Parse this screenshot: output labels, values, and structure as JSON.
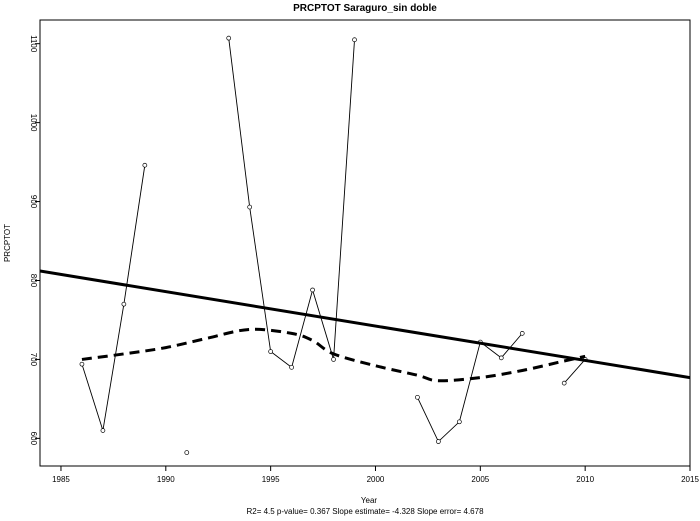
{
  "chart_data": {
    "type": "line",
    "title": "PRCPTOT   Saraguro_sin doble",
    "xlabel": "Year",
    "ylabel": "PRCPTOT",
    "xlim": [
      1984,
      2015
    ],
    "ylim": [
      565,
      1130
    ],
    "xticks": [
      1985,
      1990,
      1995,
      2000,
      2005,
      2010,
      2015
    ],
    "yticks": [
      600,
      700,
      800,
      900,
      1000,
      1100
    ],
    "grid": false,
    "footnote": "R2= 4.5  p-value= 0.367  Slope estimate= -4.328  Slope error= 4.678",
    "series": [
      {
        "style": "thin-line-with-open-circles",
        "segments": [
          [
            [
              1986,
              694
            ],
            [
              1987,
              610
            ],
            [
              1988,
              770
            ],
            [
              1989,
              946
            ]
          ],
          [
            [
              1991,
              582
            ]
          ],
          [
            [
              1993,
              1107
            ],
            [
              1994,
              893
            ],
            [
              1995,
              710
            ],
            [
              1996,
              690
            ],
            [
              1997,
              788
            ],
            [
              1998,
              700
            ],
            [
              1999,
              1105
            ]
          ],
          [
            [
              2002,
              652
            ],
            [
              2003,
              596
            ],
            [
              2004,
              621
            ],
            [
              2005,
              722
            ],
            [
              2006,
              702
            ],
            [
              2007,
              733
            ]
          ],
          [
            [
              2009,
              670
            ],
            [
              2010,
              700
            ]
          ]
        ]
      },
      {
        "style": "thick-solid-trend-line",
        "x": [
          1984,
          2015
        ],
        "y": [
          812,
          677
        ]
      },
      {
        "style": "thick-dashed-smooth-line",
        "x": [
          1986,
          1988,
          1990,
          1992,
          1994,
          1996,
          1997,
          1998,
          2000,
          2002,
          2003,
          2005,
          2007,
          2009,
          2010
        ],
        "y": [
          700,
          707,
          715,
          727,
          738,
          733,
          724,
          707,
          692,
          680,
          673,
          677,
          686,
          698,
          704
        ]
      }
    ]
  }
}
